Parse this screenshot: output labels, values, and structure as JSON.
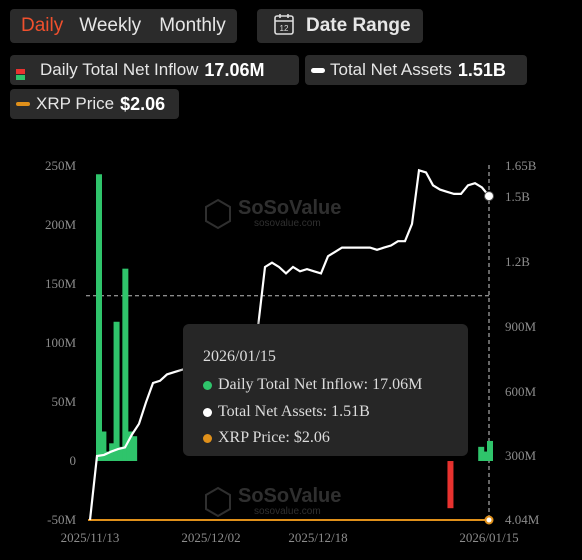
{
  "tabs": [
    {
      "label": "Daily",
      "active": true
    },
    {
      "label": "Weekly",
      "active": false
    },
    {
      "label": "Monthly",
      "active": false
    }
  ],
  "date_range": {
    "label": "Date Range",
    "icon": "calendar-icon",
    "icon_text": "12"
  },
  "legend": [
    {
      "label": "Daily Total Net Inflow",
      "value": "17.06M",
      "icon": "inflow-swatch-icon"
    },
    {
      "label": "Total Net Assets",
      "value": "1.51B",
      "icon": "assets-swatch-icon"
    },
    {
      "label": "XRP Price",
      "value": "$2.06",
      "icon": "price-swatch-icon"
    }
  ],
  "watermark": {
    "brand": "SoSoValue",
    "url": "sosovalue.com"
  },
  "tooltip": {
    "date": "2026/01/15",
    "rows": [
      {
        "text": "Daily Total Net Inflow: 17.06M",
        "color": "#2fc46b"
      },
      {
        "text": "Total Net Assets: 1.51B",
        "color": "#ffffff"
      },
      {
        "text": "XRP Price: $2.06",
        "color": "#e0901a"
      }
    ]
  },
  "colors": {
    "positive": "#2fc46b",
    "negative": "#e8322f",
    "assets": "#ffffff",
    "price": "#e0901a"
  },
  "chart_data": {
    "type": "bar",
    "left_axis": {
      "ticks": [
        "250M",
        "200M",
        "150M",
        "100M",
        "50M",
        "0",
        "-50M"
      ],
      "range": [
        -50,
        250
      ],
      "unit": "M"
    },
    "right_axis": {
      "ticks": [
        "1.65B",
        "1.5B",
        "1.2B",
        "900M",
        "600M",
        "300M",
        "4.04M"
      ]
    },
    "x_tick_labels": [
      "2025/11/13",
      "2025/12/02",
      "2025/12/18",
      "2026/01/15"
    ],
    "reference_line_value": 140,
    "series": [
      {
        "name": "Daily Total Net Inflow",
        "type": "bar",
        "values": [
          243,
          25,
          8,
          15,
          118,
          12,
          163,
          25,
          21,
          0,
          0,
          0,
          0,
          0,
          0,
          0,
          0,
          0,
          0,
          0,
          0,
          0,
          0,
          0,
          0,
          0,
          0,
          0,
          0,
          0,
          0,
          0,
          0,
          0,
          0,
          0,
          0,
          0,
          0,
          0,
          0,
          0,
          0,
          0,
          0,
          0,
          0,
          0,
          0,
          0,
          0,
          0,
          0,
          0,
          0,
          0,
          0,
          0,
          0,
          0,
          0,
          0,
          0,
          0,
          0,
          0,
          0,
          0,
          0,
          0,
          0,
          0,
          0,
          0,
          0,
          0,
          0,
          0,
          0,
          0,
          -40,
          0,
          0,
          0,
          0,
          0,
          0,
          12,
          8,
          17
        ]
      },
      {
        "name": "Total Net Assets",
        "type": "line",
        "values": [
          4.04,
          300,
          305,
          320,
          332,
          340,
          400,
          450,
          550,
          640,
          650,
          680,
          690,
          700,
          710,
          720,
          730,
          740,
          750,
          760,
          780,
          790,
          890,
          895,
          900,
          1180,
          1200,
          1180,
          1150,
          1180,
          1160,
          1170,
          1160,
          1150,
          1230,
          1250,
          1270,
          1270,
          1270,
          1270,
          1270,
          1260,
          1270,
          1280,
          1300,
          1300,
          1380,
          1630,
          1620,
          1560,
          1540,
          1530,
          1520,
          1520,
          1560,
          1570,
          1550,
          1510
        ]
      },
      {
        "name": "XRP Price",
        "type": "line",
        "values": []
      }
    ]
  }
}
